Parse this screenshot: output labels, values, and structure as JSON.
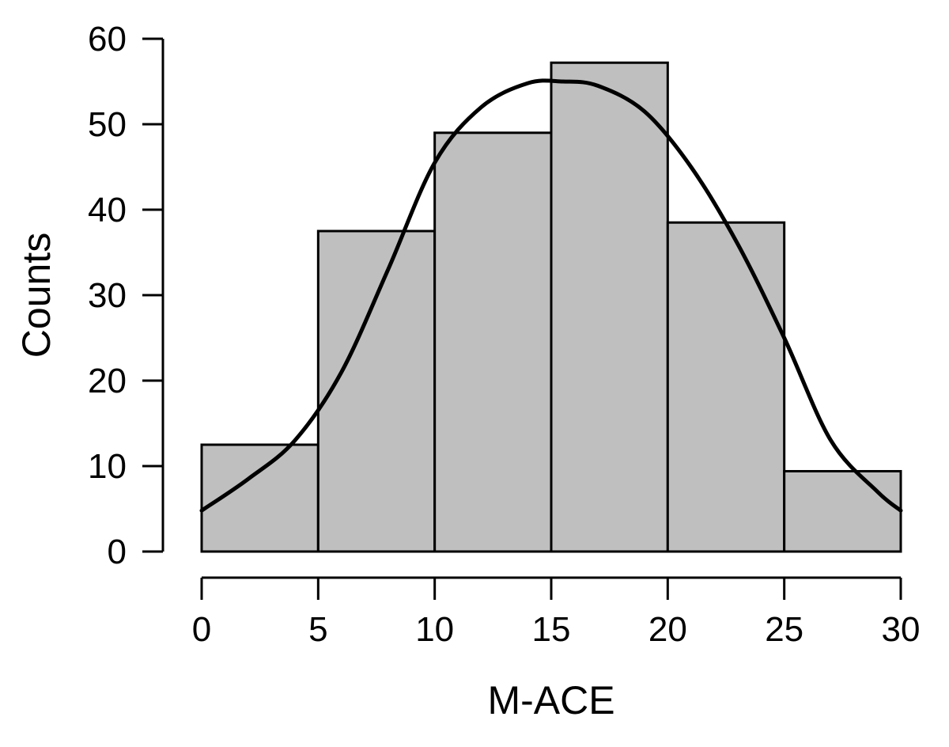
{
  "chart_data": {
    "type": "bar",
    "subtype": "histogram",
    "xlabel": "M-ACE",
    "ylabel": "Counts",
    "bins": [
      {
        "start": 0,
        "end": 5,
        "count": 12.5
      },
      {
        "start": 5,
        "end": 10,
        "count": 37.5
      },
      {
        "start": 10,
        "end": 15,
        "count": 49
      },
      {
        "start": 15,
        "end": 20,
        "count": 57.2
      },
      {
        "start": 20,
        "end": 25,
        "count": 38.5
      },
      {
        "start": 25,
        "end": 30,
        "count": 9.4
      }
    ],
    "density_curve": {
      "x": [
        0,
        2,
        4,
        6,
        8,
        10,
        12,
        14,
        15.5,
        17,
        19,
        21,
        23,
        25,
        27,
        29,
        30
      ],
      "y": [
        4.8,
        8.5,
        13,
        21,
        33,
        45.5,
        52,
        54.8,
        55,
        54.5,
        51.5,
        45,
        36,
        25,
        13,
        7,
        4.8
      ]
    },
    "xlim": [
      0,
      30
    ],
    "ylim": [
      0,
      60
    ],
    "xticks": [
      "0",
      "5",
      "10",
      "15",
      "20",
      "25",
      "30"
    ],
    "yticks": [
      "0",
      "10",
      "20",
      "30",
      "40",
      "50",
      "60"
    ],
    "grid": false
  }
}
